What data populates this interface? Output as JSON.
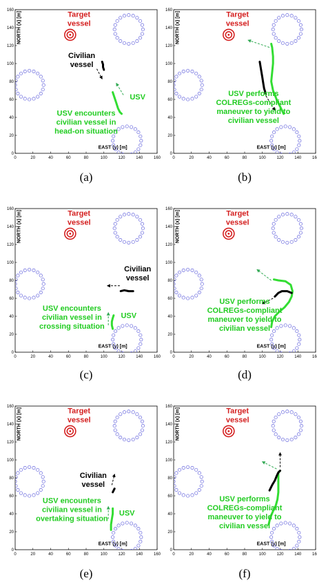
{
  "colors": {
    "target": "#d42020",
    "usv": "#33dd33",
    "civilian": "#000000",
    "obstacle": "#6666dd",
    "usv_text": "#22cc22"
  },
  "chart_data": [
    {
      "type": "scatter",
      "caption": "(a)",
      "xlabel": "EAST (y) [m]",
      "ylabel": "NORTH (x) [m]",
      "xlim": [
        0,
        160
      ],
      "ylim": [
        0,
        160
      ],
      "xticks": [
        0,
        20,
        40,
        60,
        80,
        100,
        120,
        140,
        160
      ],
      "yticks": [
        0,
        20,
        40,
        60,
        80,
        100,
        120,
        140,
        160
      ],
      "obstacles": [
        {
          "x": 128,
          "y": 138,
          "r": 16
        },
        {
          "x": 16,
          "y": 76,
          "r": 16
        },
        {
          "x": 126,
          "y": 14,
          "r": 16
        }
      ],
      "target": {
        "x": 62,
        "y": 132
      },
      "civilian_path": [
        [
          98,
          102
        ],
        [
          99,
          99
        ],
        [
          99,
          96
        ],
        [
          100,
          93
        ]
      ],
      "usv_path": [
        [
          110,
          68
        ],
        [
          112,
          62
        ],
        [
          114,
          56
        ],
        [
          116,
          50
        ],
        [
          118,
          46
        ],
        [
          120,
          44
        ]
      ],
      "civilian_arrow": [
        [
          92,
          94
        ],
        [
          98,
          83
        ]
      ],
      "usv_arrow": [
        [
          122,
          65
        ],
        [
          114,
          78
        ]
      ],
      "annotations": [
        {
          "text": "Target",
          "color": "target",
          "x": 72,
          "y": 152
        },
        {
          "text": "vessel",
          "color": "target",
          "x": 72,
          "y": 142
        },
        {
          "text": "Civilian",
          "color": "civilian",
          "x": 75,
          "y": 106
        },
        {
          "text": "vessel",
          "color": "civilian",
          "x": 75,
          "y": 96
        },
        {
          "text": "USV",
          "color": "usv_text",
          "x": 138,
          "y": 60
        },
        {
          "text": "USV encounters",
          "color": "usv_text",
          "x": 80,
          "y": 42
        },
        {
          "text": "civilian vessel in",
          "color": "usv_text",
          "x": 80,
          "y": 32
        },
        {
          "text": "head-on situation",
          "color": "usv_text",
          "x": 80,
          "y": 22
        }
      ]
    },
    {
      "type": "scatter",
      "caption": "(b)",
      "xlabel": "EAST (y) [m]",
      "ylabel": "NORTH (x) [m]",
      "xlim": [
        0,
        160
      ],
      "ylim": [
        0,
        160
      ],
      "xticks": [
        0,
        20,
        40,
        60,
        80,
        100,
        120,
        140,
        160
      ],
      "yticks": [
        0,
        20,
        40,
        60,
        80,
        100,
        120,
        140,
        160
      ],
      "obstacles": [
        {
          "x": 128,
          "y": 138,
          "r": 16
        },
        {
          "x": 16,
          "y": 76,
          "r": 16
        },
        {
          "x": 126,
          "y": 14,
          "r": 16
        }
      ],
      "target": {
        "x": 62,
        "y": 132
      },
      "civilian_path": [
        [
          97,
          102
        ],
        [
          98,
          96
        ],
        [
          99,
          90
        ],
        [
          100,
          84
        ],
        [
          101,
          78
        ],
        [
          102,
          72
        ],
        [
          104,
          66
        ]
      ],
      "usv_path": [
        [
          124,
          44
        ],
        [
          120,
          52
        ],
        [
          116,
          60
        ],
        [
          112,
          70
        ],
        [
          110,
          80
        ],
        [
          111,
          90
        ],
        [
          112,
          100
        ],
        [
          112,
          108
        ],
        [
          111,
          118
        ],
        [
          110,
          122
        ]
      ],
      "civilian_arrow": [
        [
          104,
          64
        ],
        [
          114,
          48
        ]
      ],
      "usv_arrow": [
        [
          108,
          118
        ],
        [
          84,
          126
        ]
      ],
      "annotations": [
        {
          "text": "Target",
          "color": "target",
          "x": 72,
          "y": 152
        },
        {
          "text": "vessel",
          "color": "target",
          "x": 72,
          "y": 142
        },
        {
          "text": "USV performs",
          "color": "usv_text",
          "x": 90,
          "y": 64
        },
        {
          "text": "COLREGs-compliant",
          "color": "usv_text",
          "x": 90,
          "y": 54
        },
        {
          "text": "maneuver to yield to",
          "color": "usv_text",
          "x": 90,
          "y": 44
        },
        {
          "text": "civilian vessel",
          "color": "usv_text",
          "x": 90,
          "y": 34
        }
      ]
    },
    {
      "type": "scatter",
      "caption": "(c)",
      "xlabel": "EAST (y) [m]",
      "ylabel": "NORTH (x) [m]",
      "xlim": [
        0,
        160
      ],
      "ylim": [
        0,
        160
      ],
      "xticks": [
        0,
        20,
        40,
        60,
        80,
        100,
        120,
        140,
        160
      ],
      "yticks": [
        0,
        20,
        40,
        60,
        80,
        100,
        120,
        140,
        160
      ],
      "obstacles": [
        {
          "x": 128,
          "y": 138,
          "r": 16
        },
        {
          "x": 16,
          "y": 76,
          "r": 16
        },
        {
          "x": 126,
          "y": 14,
          "r": 16
        }
      ],
      "target": {
        "x": 62,
        "y": 132
      },
      "civilian_path": [
        [
          133,
          68
        ],
        [
          128,
          68
        ],
        [
          123,
          69
        ],
        [
          119,
          68
        ]
      ],
      "usv_path": [
        [
          110,
          26
        ],
        [
          109,
          30
        ],
        [
          109,
          34
        ],
        [
          110,
          38
        ],
        [
          111,
          41
        ]
      ],
      "civilian_arrow": [
        [
          118,
          74
        ],
        [
          104,
          74
        ]
      ],
      "usv_arrow": [
        [
          105,
          30
        ],
        [
          105,
          44
        ]
      ],
      "annotations": [
        {
          "text": "Target",
          "color": "target",
          "x": 72,
          "y": 152
        },
        {
          "text": "vessel",
          "color": "target",
          "x": 72,
          "y": 142
        },
        {
          "text": "Civilian",
          "color": "civilian",
          "x": 138,
          "y": 90
        },
        {
          "text": "vessel",
          "color": "civilian",
          "x": 138,
          "y": 80
        },
        {
          "text": "USV",
          "color": "usv_text",
          "x": 128,
          "y": 38
        },
        {
          "text": "USV encounters",
          "color": "usv_text",
          "x": 64,
          "y": 46
        },
        {
          "text": "civilian vessel in",
          "color": "usv_text",
          "x": 64,
          "y": 36
        },
        {
          "text": "crossing situation",
          "color": "usv_text",
          "x": 64,
          "y": 26
        }
      ]
    },
    {
      "type": "scatter",
      "caption": "(d)",
      "xlabel": "EAST (y) [m]",
      "ylabel": "NORTH (x) [m]",
      "xlim": [
        0,
        160
      ],
      "ylim": [
        0,
        160
      ],
      "xticks": [
        0,
        20,
        40,
        60,
        80,
        100,
        120,
        140,
        160
      ],
      "yticks": [
        0,
        20,
        40,
        60,
        80,
        100,
        120,
        140,
        160
      ],
      "obstacles": [
        {
          "x": 128,
          "y": 138,
          "r": 16
        },
        {
          "x": 16,
          "y": 76,
          "r": 16
        },
        {
          "x": 126,
          "y": 14,
          "r": 16
        }
      ],
      "target": {
        "x": 62,
        "y": 132
      },
      "civilian_path": [
        [
          133,
          66
        ],
        [
          128,
          68
        ],
        [
          122,
          68
        ],
        [
          118,
          66
        ],
        [
          114,
          62
        ]
      ],
      "usv_path": [
        [
          110,
          28
        ],
        [
          111,
          34
        ],
        [
          114,
          40
        ],
        [
          119,
          45
        ],
        [
          125,
          50
        ],
        [
          130,
          56
        ],
        [
          133,
          62
        ],
        [
          134,
          68
        ],
        [
          132,
          75
        ],
        [
          126,
          79
        ],
        [
          118,
          80
        ],
        [
          113,
          81
        ]
      ],
      "civilian_arrow": [
        [
          112,
          60
        ],
        [
          100,
          54
        ]
      ],
      "usv_arrow": [
        [
          110,
          80
        ],
        [
          94,
          92
        ]
      ],
      "annotations": [
        {
          "text": "Target",
          "color": "target",
          "x": 72,
          "y": 152
        },
        {
          "text": "vessel",
          "color": "target",
          "x": 72,
          "y": 142
        },
        {
          "text": "USV performs",
          "color": "usv_text",
          "x": 80,
          "y": 54
        },
        {
          "text": "COLREGs-compliant",
          "color": "usv_text",
          "x": 80,
          "y": 44
        },
        {
          "text": "maneuver to yield to",
          "color": "usv_text",
          "x": 80,
          "y": 34
        },
        {
          "text": "civilian vessel",
          "color": "usv_text",
          "x": 80,
          "y": 24
        }
      ]
    },
    {
      "type": "scatter",
      "caption": "(e)",
      "xlabel": "EAST (y) [m]",
      "ylabel": "NORTH (x) [m]",
      "xlim": [
        0,
        160
      ],
      "ylim": [
        0,
        160
      ],
      "xticks": [
        0,
        20,
        40,
        60,
        80,
        100,
        120,
        140,
        160
      ],
      "yticks": [
        0,
        20,
        40,
        60,
        80,
        100,
        120,
        140,
        160
      ],
      "obstacles": [
        {
          "x": 128,
          "y": 138,
          "r": 16
        },
        {
          "x": 16,
          "y": 76,
          "r": 16
        },
        {
          "x": 126,
          "y": 14,
          "r": 16
        }
      ],
      "target": {
        "x": 62,
        "y": 132
      },
      "civilian_path": [
        [
          110,
          64
        ],
        [
          111,
          66
        ],
        [
          112,
          68
        ]
      ],
      "usv_path": [
        [
          108,
          22
        ],
        [
          108,
          28
        ],
        [
          109,
          34
        ],
        [
          110,
          40
        ],
        [
          110,
          46
        ]
      ],
      "civilian_arrow": [
        [
          109,
          72
        ],
        [
          112,
          84
        ]
      ],
      "usv_arrow": [
        [
          105,
          34
        ],
        [
          105,
          48
        ]
      ],
      "annotations": [
        {
          "text": "Target",
          "color": "target",
          "x": 72,
          "y": 152
        },
        {
          "text": "vessel",
          "color": "target",
          "x": 72,
          "y": 142
        },
        {
          "text": "Civilian",
          "color": "civilian",
          "x": 88,
          "y": 80
        },
        {
          "text": "vessel",
          "color": "civilian",
          "x": 88,
          "y": 70
        },
        {
          "text": "USV",
          "color": "usv_text",
          "x": 126,
          "y": 38
        },
        {
          "text": "USV encounters",
          "color": "usv_text",
          "x": 64,
          "y": 52
        },
        {
          "text": "civilian vessel in",
          "color": "usv_text",
          "x": 64,
          "y": 42
        },
        {
          "text": "overtaking situation",
          "color": "usv_text",
          "x": 64,
          "y": 32
        }
      ]
    },
    {
      "type": "scatter",
      "caption": "(f)",
      "xlabel": "EAST (y) [m]",
      "ylabel": "NORTH (x) [m]",
      "xlim": [
        0,
        160
      ],
      "ylim": [
        0,
        160
      ],
      "xticks": [
        0,
        20,
        40,
        60,
        80,
        100,
        120,
        140,
        160
      ],
      "yticks": [
        0,
        20,
        40,
        60,
        80,
        100,
        120,
        140,
        160
      ],
      "obstacles": [
        {
          "x": 128,
          "y": 138,
          "r": 16
        },
        {
          "x": 16,
          "y": 76,
          "r": 16
        },
        {
          "x": 126,
          "y": 14,
          "r": 16
        }
      ],
      "target": {
        "x": 62,
        "y": 132
      },
      "civilian_path": [
        [
          108,
          66
        ],
        [
          111,
          72
        ],
        [
          114,
          77
        ],
        [
          116,
          82
        ],
        [
          118,
          86
        ],
        [
          120,
          88
        ]
      ],
      "usv_path": [
        [
          107,
          28
        ],
        [
          109,
          36
        ],
        [
          112,
          43
        ],
        [
          115,
          49
        ],
        [
          117,
          56
        ],
        [
          118,
          64
        ],
        [
          118,
          72
        ],
        [
          118,
          80
        ],
        [
          118,
          86
        ],
        [
          120,
          88
        ]
      ],
      "civilian_arrow": [
        [
          120,
          92
        ],
        [
          120,
          108
        ]
      ],
      "usv_arrow": [
        [
          116,
          90
        ],
        [
          100,
          98
        ]
      ],
      "annotations": [
        {
          "text": "Target",
          "color": "target",
          "x": 72,
          "y": 152
        },
        {
          "text": "vessel",
          "color": "target",
          "x": 72,
          "y": 142
        },
        {
          "text": "USV performs",
          "color": "usv_text",
          "x": 80,
          "y": 54
        },
        {
          "text": "COLREGs-compliant",
          "color": "usv_text",
          "x": 80,
          "y": 44
        },
        {
          "text": "maneuver to yield to",
          "color": "usv_text",
          "x": 80,
          "y": 34
        },
        {
          "text": "civilian vessel",
          "color": "usv_text",
          "x": 80,
          "y": 24
        }
      ]
    }
  ]
}
